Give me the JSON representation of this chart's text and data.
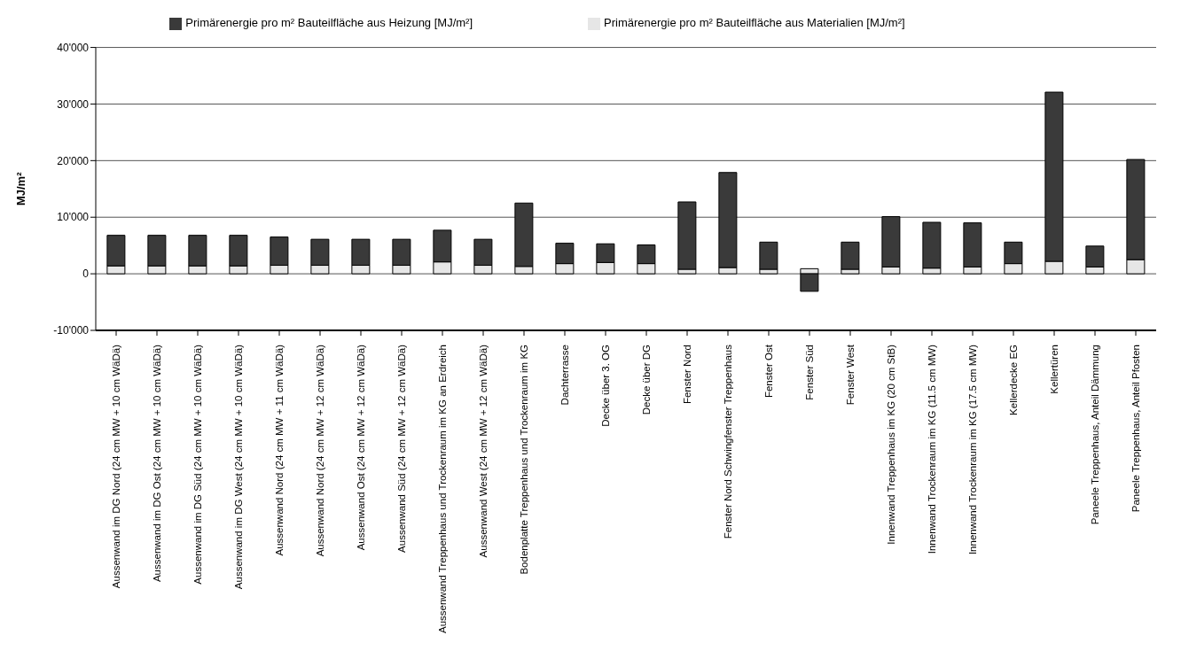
{
  "chart_data": {
    "type": "bar",
    "stacked": true,
    "ylabel": "MJ/m²",
    "legend": "top",
    "grid": "y",
    "categories": [
      "Aussenwand im DG Nord (24 cm MW + 10 cm WäDä)",
      "Aussenwand im DG Ost (24 cm MW + 10 cm WäDä)",
      "Aussenwand im DG Süd (24 cm MW + 10 cm WäDä)",
      "Aussenwand im DG West (24 cm MW + 10 cm WäDä)",
      "Aussenwand Nord (24 cm MW + 11 cm WäDä)",
      "Aussenwand Nord (24 cm MW + 12 cm WäDä)",
      "Aussenwand Ost (24 cm MW + 12 cm WäDä)",
      "Aussenwand Süd (24 cm MW + 12 cm WäDä)",
      "Aussenwand Treppenhaus und Trockenraum im KG an Erdreich",
      "Aussenwand West (24 cm MW + 12 cm WäDä)",
      "Bodenplatte Treppenhaus und Trockenraum im KG",
      "Dachterrasse",
      "Decke über 3. OG",
      "Decke über DG",
      "Fenster Nord",
      "Fenster Nord Schwingfenster Treppenhaus",
      "Fenster Ost",
      "Fenster Süd",
      "Fenster West",
      "Innenwand Treppenhaus im KG (20 cm StB)",
      "Innenwand Trockenraum im KG (11.5 cm MW)",
      "Innenwand Trockenraum im KG (17.5 cm MW)",
      "Kellerdecke EG",
      "Kellertüren",
      "Paneele Treppenhaus, Anteil Dämmung",
      "Paneele Treppenhaus, Anteil Pfosten"
    ],
    "series": [
      {
        "name": "Primärenergie pro m² Bauteilfläche aus Materialien [MJ/m²]",
        "color": "#e6e6e6",
        "values": [
          1400,
          1400,
          1400,
          1400,
          1500,
          1500,
          1500,
          1500,
          2100,
          1500,
          1300,
          1800,
          2000,
          1800,
          800,
          1100,
          800,
          900,
          800,
          1200,
          1000,
          1200,
          1800,
          2200,
          1200,
          2500
        ]
      },
      {
        "name": "Primärenergie pro m² Bauteilfläche aus Heizung [MJ/m²]",
        "color": "#3a3a3a",
        "values": [
          5400,
          5400,
          5400,
          5400,
          5000,
          4600,
          4600,
          4600,
          5600,
          4600,
          11200,
          3600,
          3300,
          3300,
          11900,
          16800,
          4800,
          -3100,
          4800,
          8900,
          8100,
          7800,
          3800,
          29900,
          3700,
          17700
        ]
      }
    ],
    "ylim": [
      -10000,
      40000
    ],
    "yticks": [
      {
        "value": -10000,
        "label": "-10'000"
      },
      {
        "value": 0,
        "label": "0"
      },
      {
        "value": 10000,
        "label": "10'000"
      },
      {
        "value": 20000,
        "label": "20'000"
      },
      {
        "value": 30000,
        "label": "30'000"
      },
      {
        "value": 40000,
        "label": "40'000"
      }
    ]
  }
}
